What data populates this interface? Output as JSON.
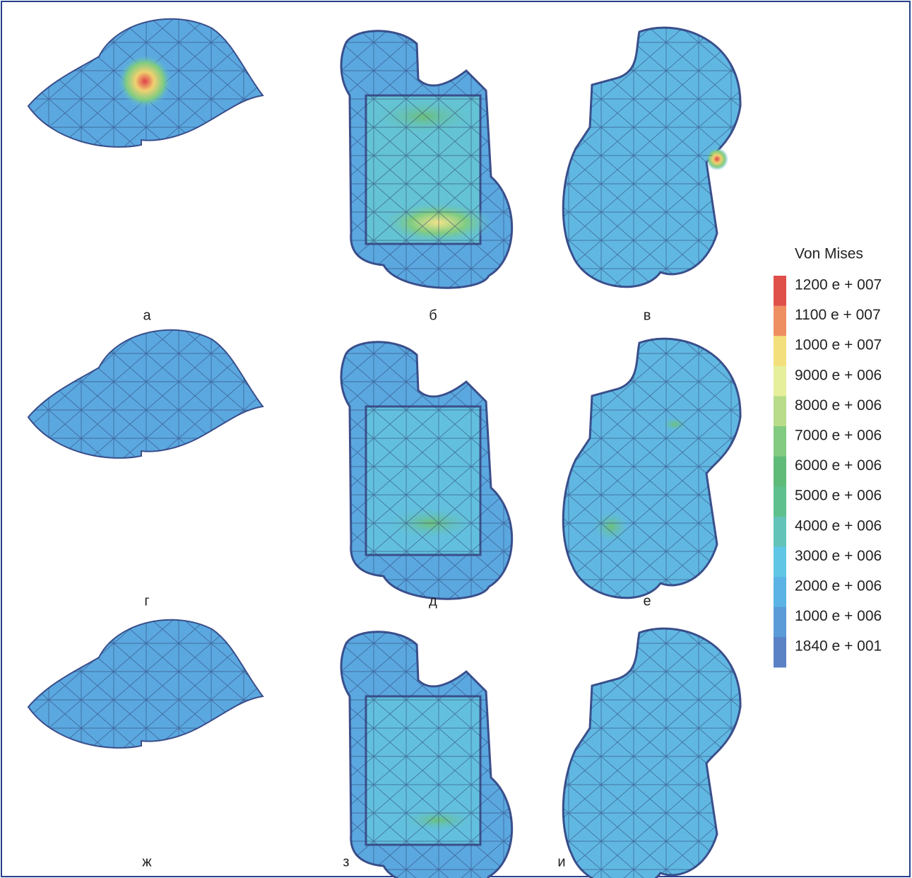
{
  "panels": {
    "labels": [
      "а",
      "б",
      "в",
      "г",
      "д",
      "е",
      "ж",
      "з",
      "и"
    ]
  },
  "legend": {
    "title": "Von Mises",
    "items": [
      {
        "label": "1200 e + 007",
        "color": "#e0504a"
      },
      {
        "label": "1100 e + 007",
        "color": "#ee8f62"
      },
      {
        "label": "1000 e + 007",
        "color": "#f3df7c"
      },
      {
        "label": "9000 e + 006",
        "color": "#e6ef9c"
      },
      {
        "label": "8000 e + 006",
        "color": "#b8dc8a"
      },
      {
        "label": "7000 e + 006",
        "color": "#82cb80"
      },
      {
        "label": "6000 e + 006",
        "color": "#5fbb78"
      },
      {
        "label": "5000 e + 006",
        "color": "#5ec08c"
      },
      {
        "label": "4000 e + 006",
        "color": "#63c3b8"
      },
      {
        "label": "3000 e + 006",
        "color": "#60c6e6"
      },
      {
        "label": "2000 e + 006",
        "color": "#5ab3e4"
      },
      {
        "label": "1000 e + 006",
        "color": "#5a9bd8"
      },
      {
        "label": "1840 e + 001",
        "color": "#5a82c4"
      }
    ]
  }
}
